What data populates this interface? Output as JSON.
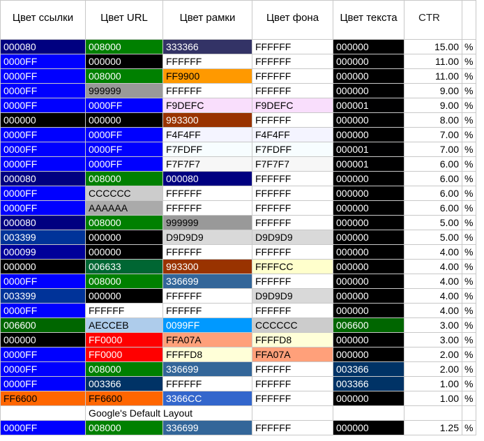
{
  "headers": [
    "Цвет ссылки",
    "Цвет URL",
    "Цвет рамки",
    "Цвет фона",
    "Цвет текста",
    "CTR"
  ],
  "rows": [
    {
      "link": "000080",
      "url": "008000",
      "border": "333366",
      "bg": "FFFFFF",
      "text": "000000",
      "ctr": "15.00",
      "pct": "%"
    },
    {
      "link": "0000FF",
      "url": "000000",
      "border": "FFFFFF",
      "bg": "FFFFFF",
      "text": "000000",
      "ctr": "11.00",
      "pct": "%"
    },
    {
      "link": "0000FF",
      "url": "008000",
      "border": "FF9900",
      "bg": "FFFFFF",
      "text": "000000",
      "ctr": "11.00",
      "pct": "%"
    },
    {
      "link": "0000FF",
      "url": "999999",
      "border": "FFFFFF",
      "bg": "FFFFFF",
      "text": "000000",
      "ctr": "9.00",
      "pct": "%"
    },
    {
      "link": "0000FF",
      "url": "0000FF",
      "border": "F9DEFC",
      "bg": "F9DEFC",
      "text": "000001",
      "ctr": "9.00",
      "pct": "%"
    },
    {
      "link": "000000",
      "url": "000000",
      "border": "993300",
      "bg": "FFFFFF",
      "text": "000000",
      "ctr": "8.00",
      "pct": "%"
    },
    {
      "link": "0000FF",
      "url": "0000FF",
      "border": "F4F4FF",
      "bg": "F4F4FF",
      "text": "000000",
      "ctr": "7.00",
      "pct": "%"
    },
    {
      "link": "0000FF",
      "url": "0000FF",
      "border": "F7FDFF",
      "bg": "F7FDFF",
      "text": "000001",
      "ctr": "7.00",
      "pct": "%"
    },
    {
      "link": "0000FF",
      "url": "0000FF",
      "border": "F7F7F7",
      "bg": "F7F7F7",
      "text": "000001",
      "ctr": "6.00",
      "pct": "%"
    },
    {
      "link": "000080",
      "url": "008000",
      "border": "000080",
      "bg": "FFFFFF",
      "text": "000000",
      "ctr": "6.00",
      "pct": "%"
    },
    {
      "link": "0000FF",
      "url": "CCCCCC",
      "border": "FFFFFF",
      "bg": "FFFFFF",
      "text": "000000",
      "ctr": "6.00",
      "pct": "%"
    },
    {
      "link": "0000FF",
      "url": "AAAAAA",
      "border": "FFFFFF",
      "bg": "FFFFFF",
      "text": "000000",
      "ctr": "6.00",
      "pct": "%"
    },
    {
      "link": "000080",
      "url": "008000",
      "border": "999999",
      "bg": "FFFFFF",
      "text": "000000",
      "ctr": "5.00",
      "pct": "%"
    },
    {
      "link": "003399",
      "url": "000000",
      "border": "D9D9D9",
      "bg": "D9D9D9",
      "text": "000000",
      "ctr": "5.00",
      "pct": "%"
    },
    {
      "link": "000099",
      "url": "000000",
      "border": "FFFFFF",
      "bg": "FFFFFF",
      "text": "000000",
      "ctr": "4.00",
      "pct": "%"
    },
    {
      "link": "000000",
      "url": "006633",
      "border": "993300",
      "bg": "FFFFCC",
      "text": "000000",
      "ctr": "4.00",
      "pct": "%"
    },
    {
      "link": "0000FF",
      "url": "008000",
      "border": "336699",
      "bg": "FFFFFF",
      "text": "000000",
      "ctr": "4.00",
      "pct": "%"
    },
    {
      "link": "003399",
      "url": "000000",
      "border": "FFFFFF",
      "bg": "D9D9D9",
      "text": "000000",
      "ctr": "4.00",
      "pct": "%"
    },
    {
      "link": "0000FF",
      "url": "FFFFFF",
      "border": "FFFFFF",
      "bg": "FFFFFF",
      "text": "000000",
      "ctr": "4.00",
      "pct": "%"
    },
    {
      "link": "006600",
      "url": "AECCEB",
      "border": "0099FF",
      "bg": "CCCCCC",
      "text": "006600",
      "ctr": "3.00",
      "pct": "%"
    },
    {
      "link": "000000",
      "url": "FF0000",
      "border": "FFA07A",
      "bg": "FFFFD8",
      "text": "000000",
      "ctr": "3.00",
      "pct": "%"
    },
    {
      "link": "0000FF",
      "url": "FF0000",
      "border": "FFFFD8",
      "bg": "FFA07A",
      "text": "000000",
      "ctr": "2.00",
      "pct": "%"
    },
    {
      "link": "0000FF",
      "url": "008000",
      "border": "336699",
      "bg": "FFFFFF",
      "text": "003366",
      "ctr": "2.00",
      "pct": "%"
    },
    {
      "link": "0000FF",
      "url": "003366",
      "border": "FFFFFF",
      "bg": "FFFFFF",
      "text": "003366",
      "ctr": "1.00",
      "pct": "%"
    },
    {
      "link": "FF6600",
      "url": "FF6600",
      "border": "3366CC",
      "bg": "FFFFFF",
      "text": "000000",
      "ctr": "1.00",
      "pct": "%"
    }
  ],
  "default_note": "Google's Default Layout",
  "default_row": {
    "link": "0000FF",
    "url": "008000",
    "border": "336699",
    "bg": "FFFFFF",
    "text": "000000",
    "ctr": "1.25",
    "pct": "%"
  }
}
